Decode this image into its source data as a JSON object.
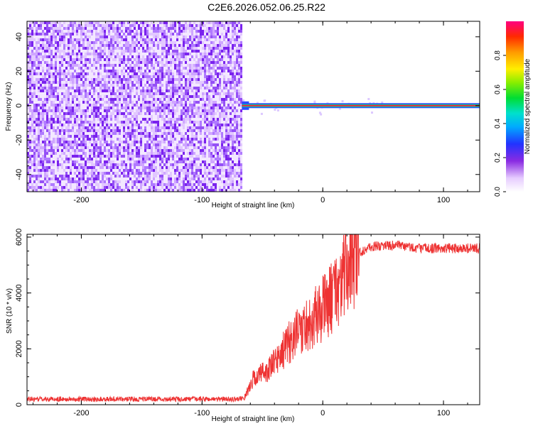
{
  "title": "C2E6.2026.052.06.25.R22",
  "chart_data": [
    {
      "type": "heatmap",
      "xlabel": "Height of straight line (km)",
      "ylabel": "Frequency (Hz)",
      "xlim": [
        -245,
        130
      ],
      "ylim": [
        -50,
        49
      ],
      "x_ticks": [
        -200,
        -100,
        0,
        100
      ],
      "y_ticks": [
        -40,
        -20,
        0,
        20,
        40
      ],
      "x_tick_labels": [
        "-200",
        "-100",
        "0",
        "100"
      ],
      "y_tick_labels": [
        "-40",
        "-20",
        "0",
        "20",
        "40"
      ],
      "noise_region_x": [
        -245,
        -67
      ],
      "signal_line": {
        "x_start": -67,
        "x_end": 130,
        "y": 0
      },
      "colorbar": {
        "label": "Normalized spectral amplitude",
        "range": [
          0,
          1
        ],
        "ticks": [
          0.0,
          0.2,
          0.4,
          0.6,
          0.8
        ],
        "tick_labels": [
          "0.0",
          "0.2",
          "0.4",
          "0.6",
          "0.8"
        ]
      }
    },
    {
      "type": "line",
      "xlabel": "Height of straight line (km)",
      "ylabel": "SNR (10 * v/v)",
      "xlim": [
        -245,
        130
      ],
      "ylim": [
        0,
        6100
      ],
      "x_ticks": [
        -200,
        -100,
        0,
        100
      ],
      "y_ticks": [
        0,
        2000,
        4000,
        6000
      ],
      "x_tick_labels": [
        "-200",
        "-100",
        "0",
        "100"
      ],
      "y_tick_labels": [
        "0",
        "2000",
        "4000",
        "6000"
      ],
      "color": "#ee3333",
      "series": [
        {
          "x": [
            -245,
            -200,
            -150,
            -100,
            -70,
            -65,
            -62,
            -60,
            -58,
            -55,
            -52,
            -50,
            -45,
            -40,
            -35,
            -30,
            -25,
            -20,
            -15,
            -10,
            -5,
            0,
            5,
            10,
            15,
            20,
            25,
            30,
            40,
            50,
            60,
            70,
            80,
            90,
            100,
            110,
            120,
            130
          ],
          "values": [
            200,
            200,
            200,
            200,
            200,
            250,
            500,
            700,
            900,
            1000,
            1100,
            1150,
            1250,
            1500,
            1800,
            2100,
            2400,
            2600,
            2800,
            3000,
            3200,
            3450,
            3700,
            4000,
            4400,
            4800,
            5200,
            5450,
            5650,
            5700,
            5700,
            5650,
            5600,
            5600,
            5600,
            5600,
            5600,
            5600
          ]
        }
      ]
    }
  ]
}
